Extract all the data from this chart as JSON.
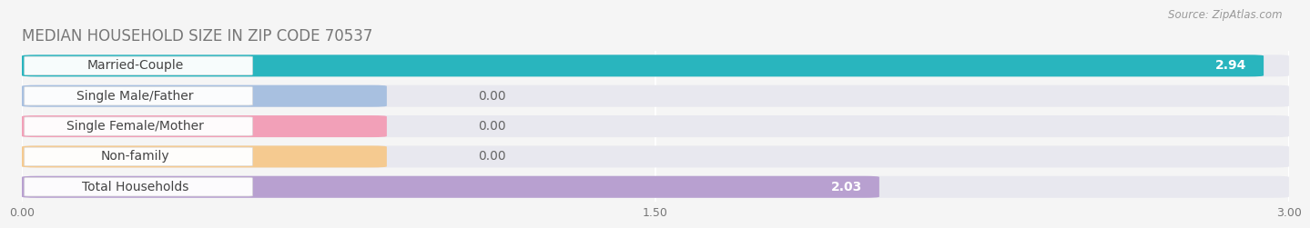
{
  "title": "MEDIAN HOUSEHOLD SIZE IN ZIP CODE 70537",
  "source": "Source: ZipAtlas.com",
  "categories": [
    "Married-Couple",
    "Single Male/Father",
    "Single Female/Mother",
    "Non-family",
    "Total Households"
  ],
  "values": [
    2.94,
    0.0,
    0.0,
    0.0,
    2.03
  ],
  "bar_colors": [
    "#29b5be",
    "#a8c0e0",
    "#f2a0b8",
    "#f5ca90",
    "#b8a0d0"
  ],
  "xlim": [
    0,
    3.0
  ],
  "xticks": [
    0.0,
    1.5,
    3.0
  ],
  "xtick_labels": [
    "0.00",
    "1.50",
    "3.00"
  ],
  "bar_height": 0.72,
  "label_fontsize": 10,
  "value_fontsize": 10,
  "title_fontsize": 12,
  "source_fontsize": 8.5,
  "background_color": "#f5f5f5",
  "bar_bg_color": "#e8e8ef",
  "label_box_color": "#ffffff",
  "grid_color": "#ffffff",
  "value_color_inside": "#ffffff",
  "value_color_outside": "#666666"
}
